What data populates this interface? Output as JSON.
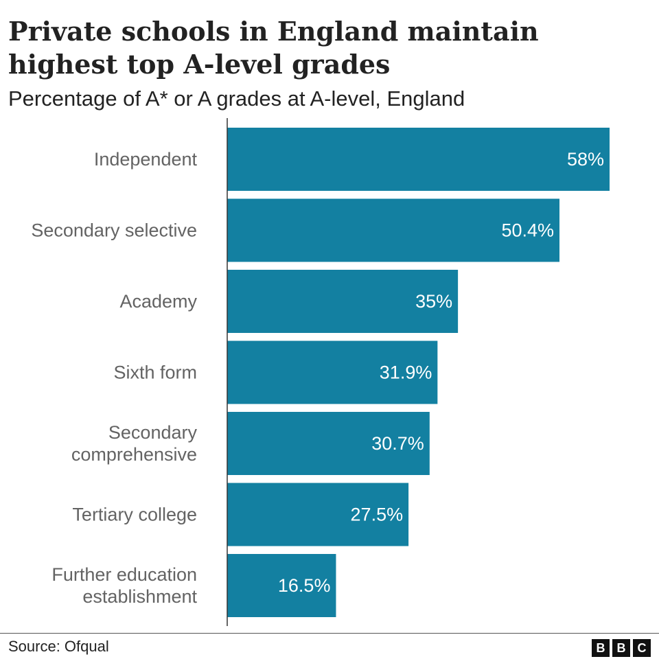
{
  "header": {
    "title": "Private schools in England maintain highest top A-level grades",
    "subtitle": "Percentage of A* or A grades at A-level, England"
  },
  "footer": {
    "source": "Source: Ofqual",
    "logo_letters": [
      "B",
      "B",
      "C"
    ]
  },
  "colors": {
    "bar": "#1380A1",
    "category_label": "#636363",
    "value_label": "#ffffff",
    "axis_line": "#333333"
  },
  "chart_data": {
    "type": "bar",
    "orientation": "horizontal",
    "title": "Private schools in England maintain highest top A-level grades",
    "subtitle": "Percentage of A* or A grades at A-level, England",
    "categories": [
      [
        "Independent"
      ],
      [
        "Secondary selective"
      ],
      [
        "Academy"
      ],
      [
        "Sixth form"
      ],
      [
        "Secondary",
        "comprehensive"
      ],
      [
        "Tertiary college"
      ],
      [
        "Further education",
        "establishment"
      ]
    ],
    "values": [
      58,
      50.4,
      35,
      31.9,
      30.7,
      27.5,
      16.5
    ],
    "value_labels": [
      "58%",
      "50.4%",
      "35%",
      "31.9%",
      "30.7%",
      "27.5%",
      "16.5%"
    ],
    "xlim": [
      0,
      58
    ],
    "grid": false,
    "legend": "none"
  }
}
